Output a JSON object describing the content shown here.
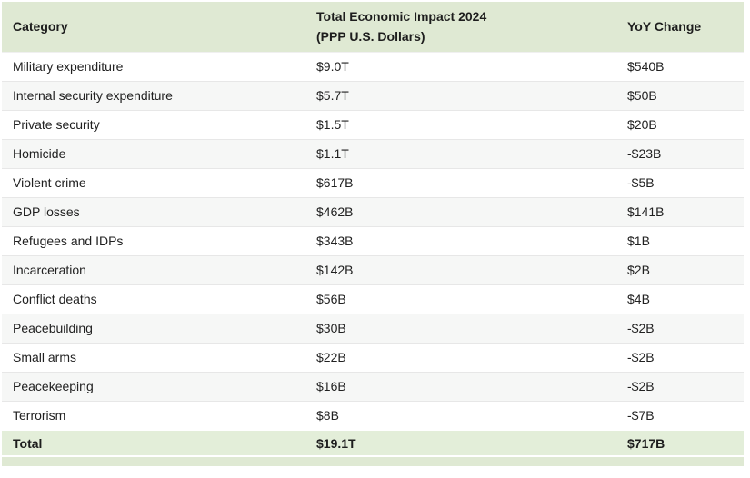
{
  "chart_data": {
    "type": "table",
    "columns": [
      "Category",
      "Total Economic Impact 2024\n(PPP U.S. Dollars)",
      "YoY Change"
    ],
    "rows": [
      [
        "Military expenditure",
        "$9.0T",
        "$540B"
      ],
      [
        "Internal security expenditure",
        "$5.7T",
        "$50B"
      ],
      [
        "Private security",
        "$1.5T",
        "$20B"
      ],
      [
        "Homicide",
        "$1.1T",
        "-$23B"
      ],
      [
        "Violent crime",
        "$617B",
        "-$5B"
      ],
      [
        "GDP losses",
        "$462B",
        "$141B"
      ],
      [
        "Refugees and IDPs",
        "$343B",
        "$1B"
      ],
      [
        "Incarceration",
        "$142B",
        "$2B"
      ],
      [
        "Conflict deaths",
        "$56B",
        "$4B"
      ],
      [
        "Peacebuilding",
        "$30B",
        "-$2B"
      ],
      [
        "Small arms",
        "$22B",
        "-$2B"
      ],
      [
        "Peacekeeping",
        "$16B",
        "-$2B"
      ],
      [
        "Terrorism",
        "$8B",
        "-$7B"
      ]
    ],
    "total_row": [
      "Total",
      "$19.1T",
      "$717B"
    ],
    "layout_hints": {
      "zebra_striping": true,
      "header_position": "top",
      "total_position": "bottom"
    }
  },
  "styles": {
    "header_bg": "#dfe9d3",
    "total_row_bg": "#e3eed9",
    "zebra_row_bg": "#f6f7f6",
    "row_border": "#e7e7e7",
    "text_color": "#212121"
  }
}
